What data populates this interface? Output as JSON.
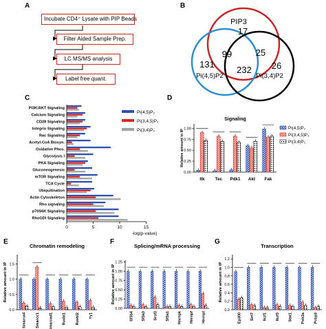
{
  "panels": {
    "a": {
      "letter": "A",
      "steps": [
        "Incubate CD4⁺ Lysate with PIP Beads",
        "Filter Aided Sample Prep.",
        "LC MS/MS analysis",
        "Label free quant."
      ]
    },
    "b": {
      "letter": "B",
      "sets": [
        "PIP3",
        "Pi(4,5)P2",
        "Pi(3,4)P2"
      ],
      "counts": {
        "pip3_only": "17",
        "pi45_only": "131",
        "pi34_only": "26",
        "pip3_pi45": "99",
        "pip3_pi34": "25",
        "all_three": "232"
      },
      "colors": {
        "pip3": "#c62828",
        "pi45": "#2b8fd1",
        "pi34": "#000000"
      }
    },
    "c": {
      "letter": "C"
    },
    "d": {
      "letter": "D"
    },
    "e": {
      "letter": "E"
    },
    "f": {
      "letter": "F"
    },
    "g": {
      "letter": "G"
    }
  },
  "colors": {
    "pi45": "#2f4fb0",
    "pi345": "#d62828",
    "pi34": "#a0a0a0"
  },
  "chart_data": [
    {
      "panel": "C",
      "type": "bar",
      "orientation": "horizontal",
      "categories": [
        "PI3K/AKT Signaling",
        "Calcium Signaling",
        "CD28 Signaling",
        "Integrin Signaling",
        "Rac Signaling",
        "Acetyl-CoA Biosyn.",
        "Oxidative Phos.",
        "Glycolysis I",
        "PKA Signaling",
        "Gluconeogenesis",
        "mTOR Signaling",
        "TCA Cycle",
        "Ubiquitination",
        "Actin Cytoskeleton",
        "Rho signaling",
        "p70S6K Signaling",
        "RhoGDI Signaling"
      ],
      "series": [
        {
          "name": "Pi(4,5)P₂",
          "values": [
            2.8,
            3.5,
            3.5,
            4.5,
            3.5,
            4.5,
            8.3,
            5.0,
            4.0,
            4.8,
            5.8,
            4.8,
            5.2,
            8.8,
            7.3,
            9.8,
            9.8
          ]
        },
        {
          "name": "Pi(3,4,5)P₃",
          "values": [
            2.0,
            3.0,
            3.0,
            3.8,
            2.5,
            1.0,
            2.5,
            1.5,
            3.5,
            1.5,
            2.5,
            0.8,
            4.5,
            5.5,
            5.0,
            5.5,
            6.0
          ]
        },
        {
          "name": "Pi(3,4)P₂",
          "values": [
            2.3,
            2.0,
            2.5,
            3.3,
            2.0,
            1.3,
            4.0,
            3.5,
            3.0,
            3.5,
            4.8,
            2.3,
            3.8,
            10.2,
            7.0,
            9.0,
            11.5
          ]
        }
      ],
      "xticks": [
        "0",
        "5",
        "10",
        "15"
      ],
      "xlim": [
        0,
        15
      ],
      "xlabel": "-log(p-value)"
    },
    {
      "panel": "D",
      "type": "bar",
      "title": "Signaling",
      "ylabel": "Relative amount in IP",
      "categories": [
        "Itk",
        "Tec",
        "Pdk1",
        "Akt",
        "Fak"
      ],
      "series": [
        {
          "name": "Pi(4,5)P₂",
          "values": [
            0.04,
            0.03,
            0.05,
            0.6,
            0.98
          ]
        },
        {
          "name": "Pi(3,4,5)P₃",
          "values": [
            0.9,
            0.82,
            0.82,
            0.55,
            0.8
          ]
        },
        {
          "name": "Pi(3,4)P₂",
          "values": [
            0.72,
            0.7,
            0.68,
            0.7,
            0.82
          ]
        }
      ],
      "yticks": [
        "0.00",
        "0.25",
        "0.50",
        "0.75",
        "1.00"
      ],
      "ylim": [
        0,
        1.1
      ]
    },
    {
      "panel": "E",
      "type": "bar",
      "title": "Chromatin remodeling",
      "ylabel": "Relative amount in IP",
      "categories": [
        "Smarca4",
        "Smarcc1",
        "Smarcad1",
        "Ruvbl1",
        "Ruvbl2",
        "Yy1"
      ],
      "series": [
        {
          "name": "Pi(4,5)P₂",
          "values": [
            1.0,
            1.0,
            1.0,
            1.0,
            1.0,
            1.0
          ]
        },
        {
          "name": "Pi(3,4,5)P₃",
          "values": [
            0.22,
            1.4,
            0.2,
            0.28,
            0.25,
            0.3
          ]
        },
        {
          "name": "Pi(3,4)P₂",
          "values": [
            0.12,
            0.06,
            0.1,
            0.08,
            0.1,
            0.08
          ]
        }
      ],
      "yticks": [
        "0.0",
        "0.5",
        "1.0",
        "1.5"
      ],
      "ylim": [
        0,
        1.8
      ]
    },
    {
      "panel": "F",
      "type": "bar",
      "title": "Splicing/mRNA processing",
      "ylabel": "Relative amount in IP",
      "categories": [
        "Sf3b4",
        "Sf3a3",
        "Srsf3",
        "Sf3a1",
        "Hnrnpk",
        "Hnrnpf",
        "Hnrnpl"
      ],
      "series": [
        {
          "name": "Pi(4,5)P₂",
          "values": [
            1.0,
            1.0,
            1.0,
            1.0,
            1.0,
            1.0,
            1.0
          ]
        },
        {
          "name": "Pi(3,4,5)P₃",
          "values": [
            0.08,
            0.1,
            0.3,
            0.05,
            0.08,
            0.1,
            0.4
          ]
        },
        {
          "name": "Pi(3,4)P₂",
          "values": [
            0.05,
            0.05,
            0.1,
            0.05,
            0.05,
            0.05,
            0.08
          ]
        }
      ],
      "yticks": [
        "0.00",
        "0.25",
        "0.50",
        "0.75",
        "1.00",
        "1.25"
      ],
      "ylim": [
        0,
        1.3
      ]
    },
    {
      "panel": "G",
      "type": "bar",
      "title": "Transcription",
      "ylabel": "Relative amount in IP",
      "categories": [
        "Ep300",
        "Sirt7",
        "Ikzf1",
        "Ikzf3",
        "Stat1",
        "Polr2a",
        "Pcbp3"
      ],
      "series": [
        {
          "name": "Pi(4,5)P₂",
          "values": [
            0.9,
            1.0,
            1.0,
            1.0,
            1.0,
            1.0,
            1.0
          ]
        },
        {
          "name": "Pi(3,4,5)P₃",
          "values": [
            0.25,
            0.12,
            0.05,
            0.12,
            0.1,
            0.18,
            0.05
          ]
        },
        {
          "name": "Pi(3,4)P₂",
          "values": [
            0.28,
            0.1,
            0.05,
            0.08,
            0.08,
            0.1,
            0.08
          ]
        }
      ],
      "yticks": [
        "0.0",
        "0.2",
        "0.4",
        "0.6",
        "0.8",
        "1.0",
        "1.2"
      ],
      "ylim": [
        0,
        1.3
      ]
    }
  ]
}
